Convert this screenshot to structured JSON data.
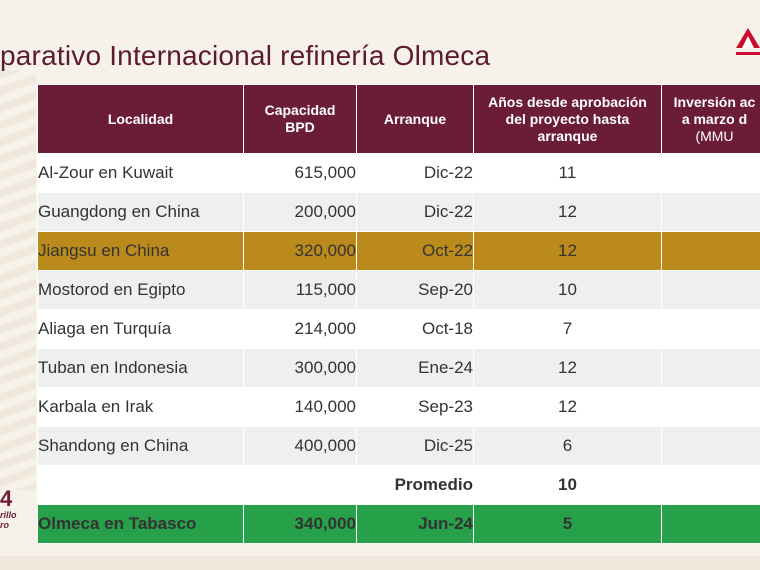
{
  "title": "parativo Internacional refinería Olmeca",
  "logo_bottom": {
    "big": "4",
    "script": "rillo",
    "script2": "ro"
  },
  "table": {
    "headers": [
      [
        "Localidad"
      ],
      [
        "Capacidad",
        "BPD"
      ],
      [
        "Arranque"
      ],
      [
        "Años desde aprobación",
        "del proyecto hasta",
        "arranque"
      ],
      [
        "Inversión ac",
        "a marzo d",
        "(MMU"
      ]
    ],
    "rows": [
      {
        "localidad": "Al-Zour en Kuwait",
        "capacidad": "615,000",
        "arranque": "Dic-22",
        "anios": "11",
        "style": "odd"
      },
      {
        "localidad": "Guangdong en China",
        "capacidad": "200,000",
        "arranque": "Dic-22",
        "anios": "12",
        "style": "even"
      },
      {
        "localidad": "Jiangsu en China",
        "capacidad": "320,000",
        "arranque": "Oct-22",
        "anios": "12",
        "style": "highlight"
      },
      {
        "localidad": "Mostorod en Egipto",
        "capacidad": "115,000",
        "arranque": "Sep-20",
        "anios": "10",
        "style": "even"
      },
      {
        "localidad": "Aliaga en Turquía",
        "capacidad": "214,000",
        "arranque": "Oct-18",
        "anios": "7",
        "style": "odd"
      },
      {
        "localidad": "Tuban en Indonesia",
        "capacidad": "300,000",
        "arranque": "Ene-24",
        "anios": "12",
        "style": "even"
      },
      {
        "localidad": "Karbala en Irak",
        "capacidad": "140,000",
        "arranque": "Sep-23",
        "anios": "12",
        "style": "odd"
      },
      {
        "localidad": "Shandong en China",
        "capacidad": "400,000",
        "arranque": "Dic-25",
        "anios": "6",
        "style": "even"
      }
    ],
    "average": {
      "label": "Promedio",
      "value": "10"
    },
    "total": {
      "localidad": "Olmeca en Tabasco",
      "capacidad": "340,000",
      "arranque": "Jun-24",
      "anios": "5"
    }
  },
  "colors": {
    "header": "#6b1d36",
    "highlight": "#bb8a1c",
    "total": "#26a049",
    "title": "#5b1a30"
  }
}
